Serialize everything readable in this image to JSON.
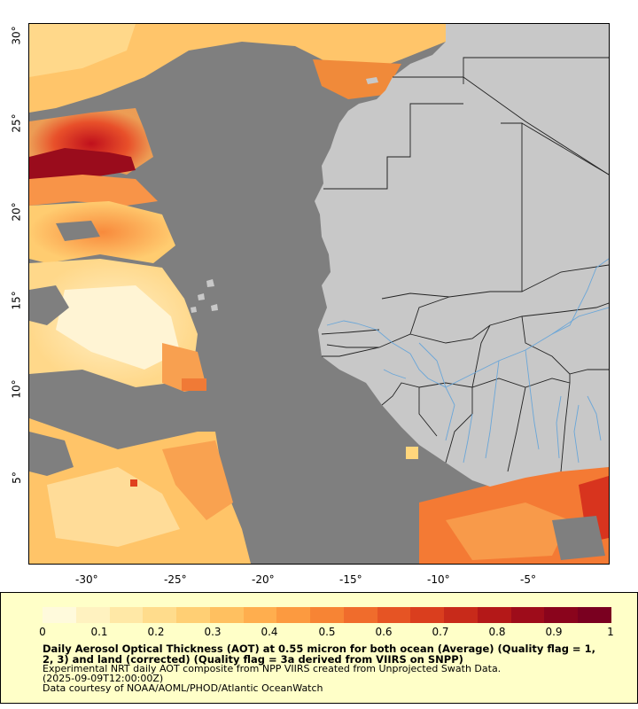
{
  "map": {
    "x_ticks": [
      "-30°",
      "-25°",
      "-20°",
      "-15°",
      "-10°",
      "-5°"
    ],
    "y_ticks": [
      "30°",
      "25°",
      "20°",
      "15°",
      "10°",
      "5°"
    ],
    "colors": {
      "ocean_nodata": "#7f7f7f",
      "land": "#c8c8c8",
      "rivers": "#6aa6d8",
      "borders": "#222222"
    }
  },
  "legend": {
    "scale_min": 0,
    "scale_max": 1,
    "ticks": [
      "0",
      "0.1",
      "0.2",
      "0.3",
      "0.4",
      "0.5",
      "0.6",
      "0.7",
      "0.8",
      "0.9",
      "1"
    ],
    "title": "Daily Aerosol Optical Thickness (AOT) at 0.55 micron for both ocean (Average) (Quality flag = 1, 2, 3) and land (corrected) (Quality flag = 3a derived from VIIRS on SNPP)",
    "line1": "Experimental NRT daily AOT composite from NPP VIIRS created from Unprojected Swath Data.",
    "line2": "(2025-09-09T12:00:00Z)",
    "line3": "Data courtesy of NOAA/AOML/PHOD/Atlantic OceanWatch",
    "palette": [
      "#fffadc",
      "#fff2c0",
      "#ffe8a6",
      "#ffdc8c",
      "#ffcf74",
      "#ffc060",
      "#ffae4e",
      "#fc9a40",
      "#f78434",
      "#f06c2c",
      "#e65424",
      "#da3e1e",
      "#c82a1a",
      "#b41818",
      "#9e0c1a",
      "#8a041c",
      "#7a0020"
    ]
  }
}
